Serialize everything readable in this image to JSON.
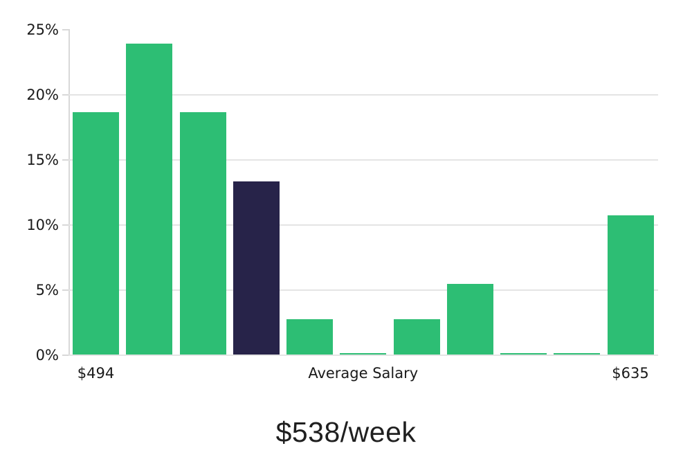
{
  "chart_data": {
    "type": "bar",
    "title": "$538/week",
    "xlabel": "",
    "ylabel": "",
    "ylim": [
      0,
      25
    ],
    "legend": "none",
    "grid": "horizontal",
    "y_ticks": [
      {
        "value": 0,
        "label": "0%",
        "gridline": true
      },
      {
        "value": 5,
        "label": "5%",
        "gridline": true
      },
      {
        "value": 10,
        "label": "10%",
        "gridline": true
      },
      {
        "value": 15,
        "label": "15%",
        "gridline": true
      },
      {
        "value": 20,
        "label": "20%",
        "gridline": true
      },
      {
        "value": 25,
        "label": "25%",
        "gridline": false
      }
    ],
    "values": [
      18.6,
      23.9,
      18.6,
      13.3,
      2.7,
      0.1,
      2.7,
      5.4,
      0.1,
      0.1,
      10.7
    ],
    "highlight_index": 3,
    "x_axis_labels": [
      {
        "bar_index": 0,
        "label": "$494"
      },
      {
        "bar_index": 5,
        "label": "Average Salary"
      },
      {
        "bar_index": 10,
        "label": "$635"
      }
    ],
    "colors": {
      "bar": "#2dbe74",
      "highlight_bar": "#272349",
      "gridline": "#e4e4e4",
      "axis_line": "#d8d8d8",
      "tick_label": "#1a1a1a",
      "title": "#1f1f1f",
      "background": "#ffffff"
    }
  }
}
